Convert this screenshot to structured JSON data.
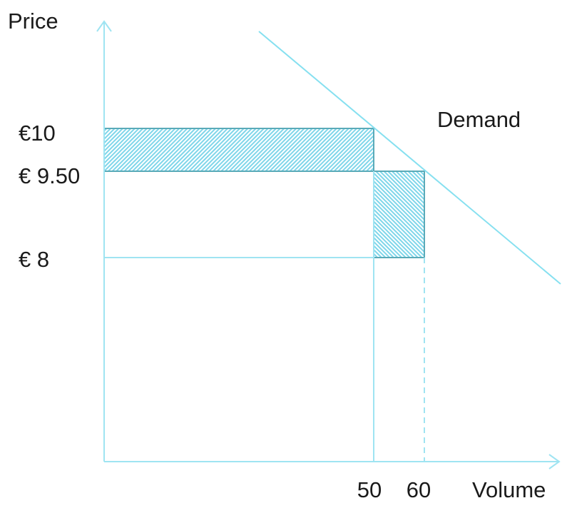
{
  "axes": {
    "y_label": "Price",
    "x_label": "Volume"
  },
  "price_ticks": [
    {
      "label": "€10",
      "value": 10
    },
    {
      "label": "€ 9.50",
      "value": 9.5
    },
    {
      "label": "€ 8",
      "value": 8
    }
  ],
  "volume_ticks": [
    {
      "label": "50",
      "value": 50
    },
    {
      "label": "60",
      "value": 60
    }
  ],
  "curve": {
    "label": "Demand"
  },
  "colors": {
    "axis": "#9fe4f2",
    "demand": "#86e0f0",
    "hatch": "#7fd6ea",
    "box_outline": "#5aaab8",
    "text": "#1a1a1a"
  }
}
